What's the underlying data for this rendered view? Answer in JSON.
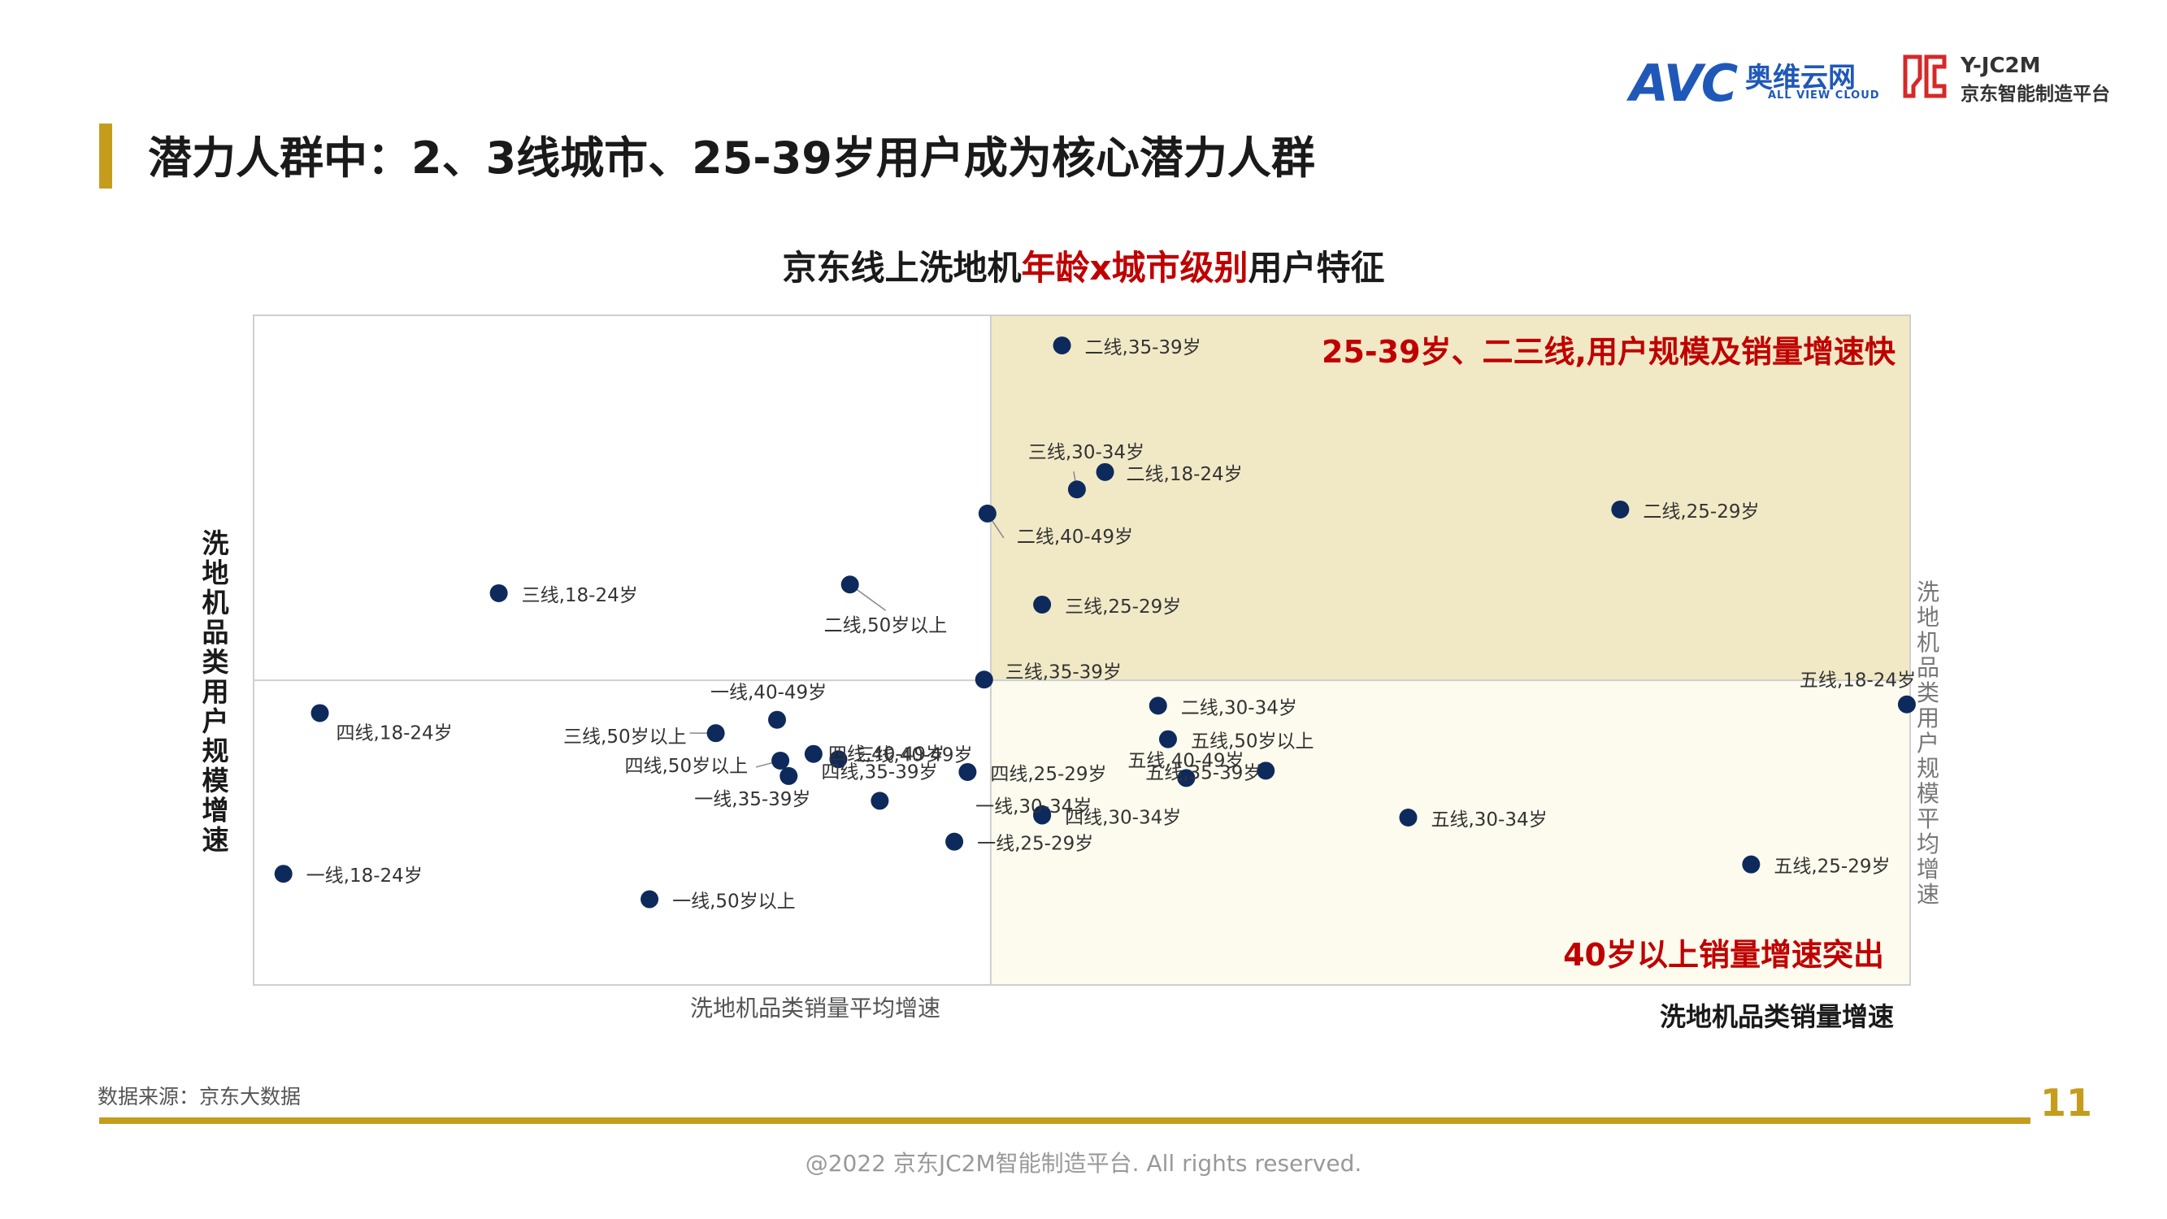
{
  "header": {
    "title": "潜力人群中：2、3线城市、25-39岁用户成为核心潜力人群",
    "logo_avc_mark": "AVC",
    "logo_avc_cn": "奥维云网",
    "logo_avc_en": "ALL VIEW CLOUD",
    "logo_jd_line1": "Y-JC2M",
    "logo_jd_line2": "京东智能制造平台"
  },
  "footer": {
    "source": "数据来源：京东大数据",
    "page_number": "11",
    "copyright": "@2022 京东JC2M智能制造平台. All rights reserved."
  },
  "colors": {
    "accent_gold": "#c69c1c",
    "highlight_red": "#c00000",
    "point_navy": "#0e2a5c",
    "quadrant_top_right": "#f1e9c6",
    "quadrant_bottom_right": "#fdfbee"
  },
  "chart_data": {
    "type": "scatter",
    "title_parts": [
      "京东线上洗地机",
      "年龄x城市级别",
      "用户特征"
    ],
    "xlabel": "洗地机品类销量增速",
    "ylabel": "洗地机品类用户规模增速",
    "x_avg_label": "洗地机品类销量平均增速",
    "y_avg_label": "洗地机品类用户规模平均增速",
    "xlim": [
      0,
      100
    ],
    "ylim": [
      0,
      100
    ],
    "x_avg": 44.5,
    "y_avg": 45.5,
    "annotations": {
      "top_right": "25-39岁、二三线,用户规模及销量增速快",
      "bottom_right": "40岁以上销量增速突出"
    },
    "points": [
      {
        "label": "二线,35-39岁",
        "x": 48.8,
        "y": 95.5
      },
      {
        "label": "三线,30-34岁",
        "x": 49.7,
        "y": 74.0
      },
      {
        "label": "二线,18-24岁",
        "x": 51.4,
        "y": 76.6
      },
      {
        "label": "二线,25-29岁",
        "x": 82.5,
        "y": 71.0
      },
      {
        "label": "二线,40-49岁",
        "x": 44.3,
        "y": 70.4
      },
      {
        "label": "三线,18-24岁",
        "x": 14.8,
        "y": 58.5
      },
      {
        "label": "二线,50岁以上",
        "x": 36.0,
        "y": 59.8
      },
      {
        "label": "三线,25-29岁",
        "x": 47.6,
        "y": 56.8
      },
      {
        "label": "三线,35-39岁",
        "x": 44.1,
        "y": 45.6
      },
      {
        "label": "四线,18-24岁",
        "x": 4.0,
        "y": 40.6
      },
      {
        "label": "一线,40-49岁",
        "x": 31.6,
        "y": 39.6
      },
      {
        "label": "三线,50岁以上",
        "x": 27.9,
        "y": 37.6
      },
      {
        "label": "四线,40-49岁",
        "x": 33.8,
        "y": 34.5
      },
      {
        "label": "三线,40-49岁",
        "x": 35.3,
        "y": 33.7
      },
      {
        "label": "四线,50岁以上",
        "x": 31.8,
        "y": 33.5
      },
      {
        "label": "一线,35-39岁",
        "x": 32.3,
        "y": 31.2
      },
      {
        "label": "四线,35-39岁",
        "x": 37.8,
        "y": 27.5
      },
      {
        "label": "四线,25-29岁",
        "x": 43.1,
        "y": 31.8
      },
      {
        "label": "一线,30-34岁",
        "x": 47.6,
        "y": 25.5
      },
      {
        "label": "四线,30-34岁",
        "x": 47.6,
        "y": 25.3
      },
      {
        "label": "一线,25-29岁",
        "x": 42.3,
        "y": 21.4
      },
      {
        "label": "二线,30-34岁",
        "x": 54.6,
        "y": 41.7
      },
      {
        "label": "五线,50岁以上",
        "x": 55.2,
        "y": 36.7
      },
      {
        "label": "五线,40-49岁",
        "x": 56.3,
        "y": 30.9
      },
      {
        "label": "五线,35-39岁",
        "x": 61.1,
        "y": 32.0
      },
      {
        "label": "五线,18-24岁",
        "x": 99.8,
        "y": 41.9
      },
      {
        "label": "五线,30-34岁",
        "x": 69.7,
        "y": 25.0
      },
      {
        "label": "五线,25-29岁",
        "x": 90.4,
        "y": 18.0
      },
      {
        "label": "一线,18-24岁",
        "x": 1.8,
        "y": 16.6
      },
      {
        "label": "一线,50岁以上",
        "x": 23.9,
        "y": 12.8
      }
    ]
  }
}
